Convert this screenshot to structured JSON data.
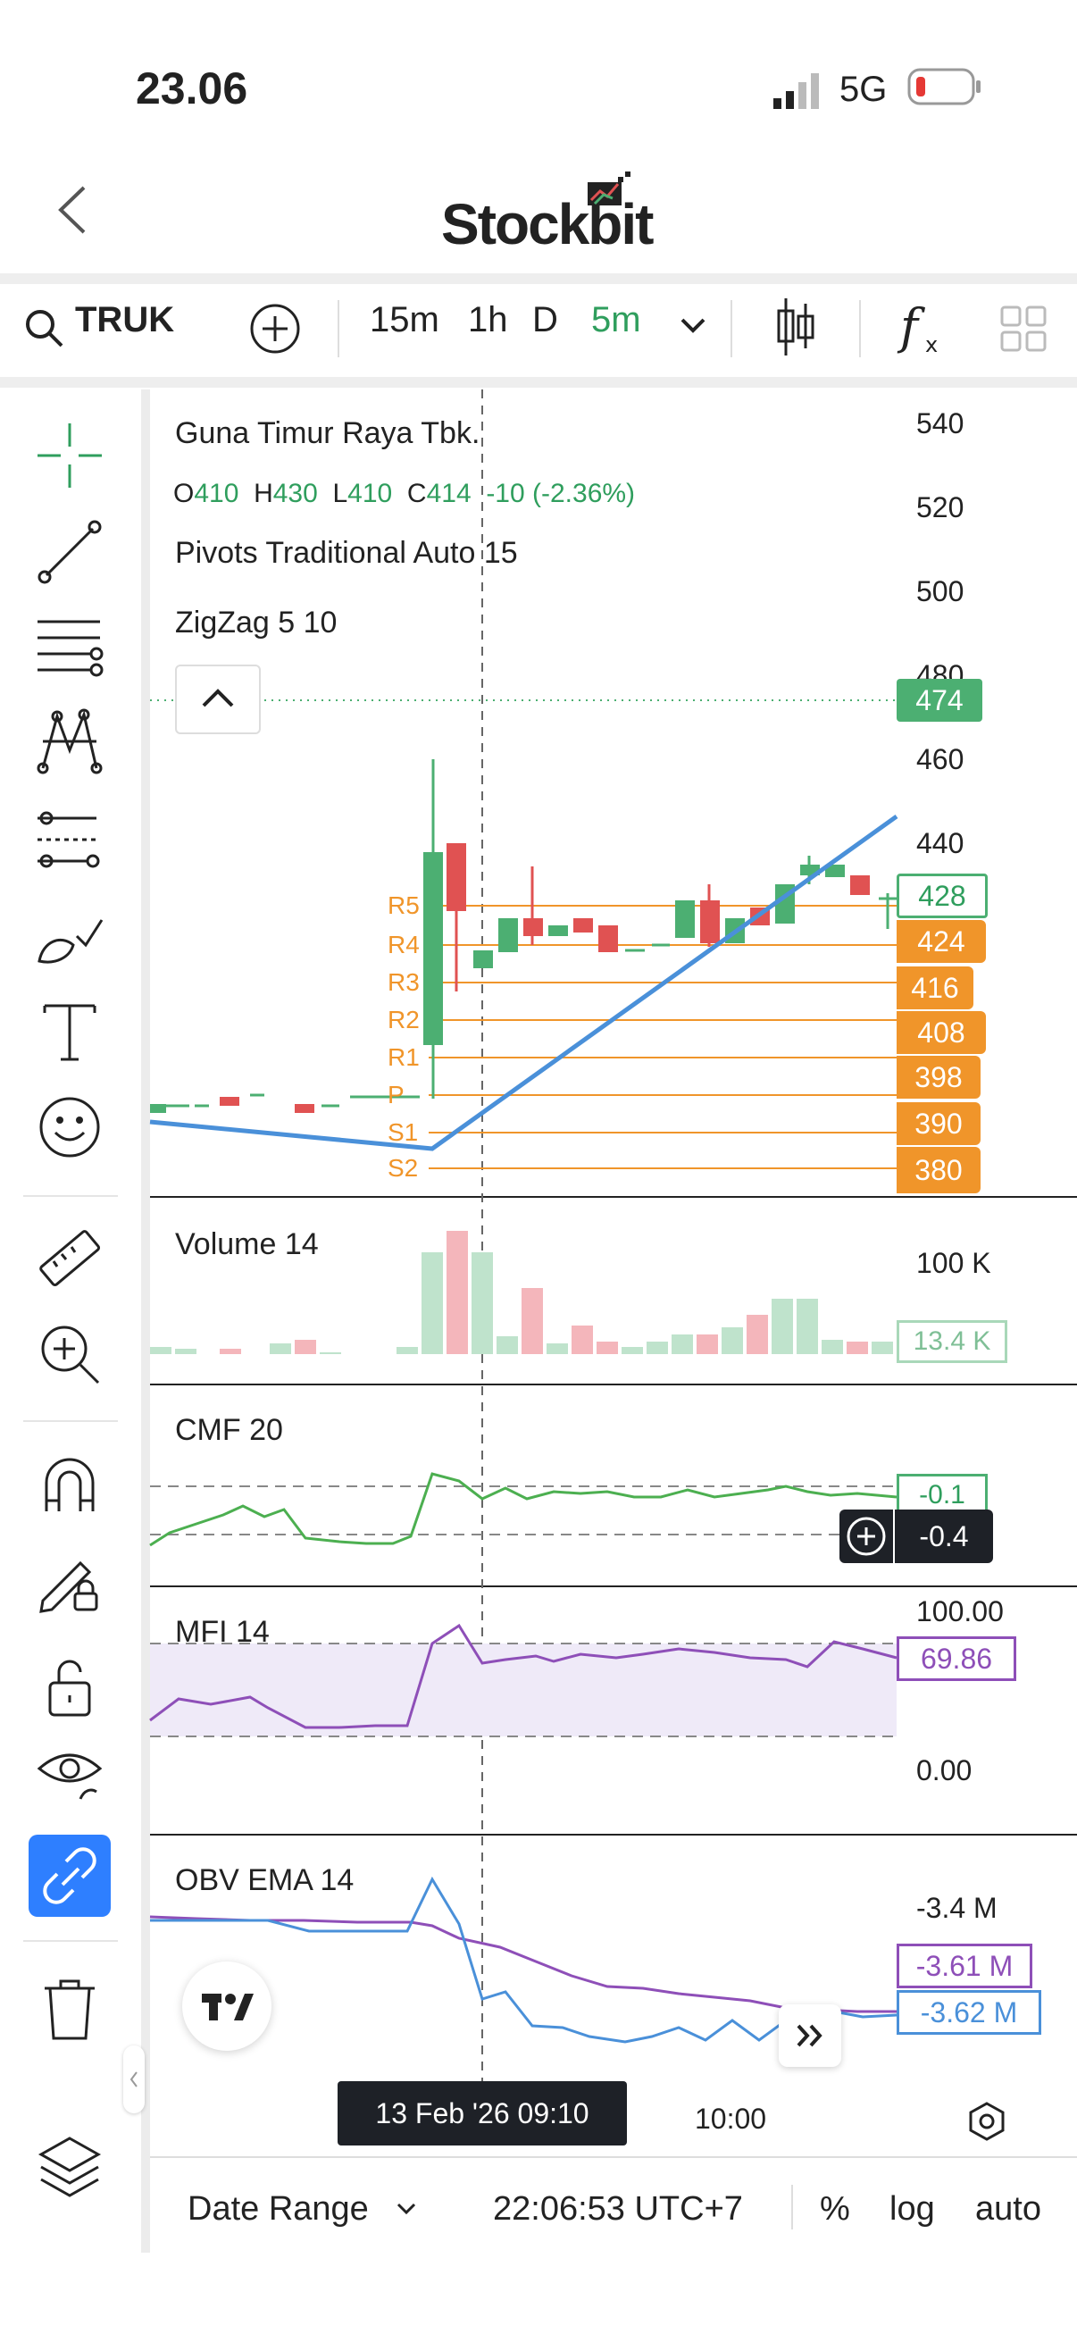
{
  "status": {
    "time": "23.06",
    "network": "5G"
  },
  "header": {
    "app": "Stockbit"
  },
  "toolbar": {
    "symbol": "TRUK",
    "intervals": [
      "15m",
      "1h",
      "D",
      "5m"
    ],
    "active_interval": "5m"
  },
  "legend": {
    "name": "Guna Timur Raya Tbk.",
    "o_label": "O",
    "o": "410",
    "h_label": "H",
    "h": "430",
    "l_label": "L",
    "l": "410",
    "c_label": "C",
    "c": "414",
    "change": "-10 (-2.36%)",
    "pivots": "Pivots Traditional Auto 15",
    "zigzag": "ZigZag 5 10"
  },
  "price_axis": [
    "540",
    "520",
    "500",
    "480",
    "460",
    "440"
  ],
  "price_badges": {
    "dotted": "474",
    "last": "428",
    "r4": "424",
    "r3": "416",
    "r2": "408",
    "r1": "398",
    "p": "390",
    "s1": "380"
  },
  "pivot_labels": [
    "R5",
    "R4",
    "R3",
    "R2",
    "R1",
    "P",
    "S1",
    "S2"
  ],
  "volume": {
    "title": "Volume 14",
    "axis": "100 K",
    "badge": "13.4 K"
  },
  "cmf": {
    "title": "CMF 20",
    "badge1": "-0.1",
    "badge2": "-0.4"
  },
  "mfi": {
    "title": "MFI 14",
    "axis_top": "100.00",
    "axis_bottom": "0.00",
    "badge": "69.86"
  },
  "obv": {
    "title": "OBV EMA 14",
    "axis": "-3.4 M",
    "badge1": "-3.61 M",
    "badge2": "-3.62 M"
  },
  "time_axis": {
    "cursor": "13 Feb '26   09:10",
    "tick": "10:00"
  },
  "bottom": {
    "date_range": "Date Range",
    "clock": "22:06:53 UTC+7",
    "percent": "%",
    "log": "log",
    "auto": "auto"
  },
  "colors": {
    "green": "#4caf72",
    "red": "#e05252",
    "orange": "#f0952a",
    "blue": "#4a90d9",
    "purple": "#8e4fb8",
    "accent": "#2e7fff"
  }
}
